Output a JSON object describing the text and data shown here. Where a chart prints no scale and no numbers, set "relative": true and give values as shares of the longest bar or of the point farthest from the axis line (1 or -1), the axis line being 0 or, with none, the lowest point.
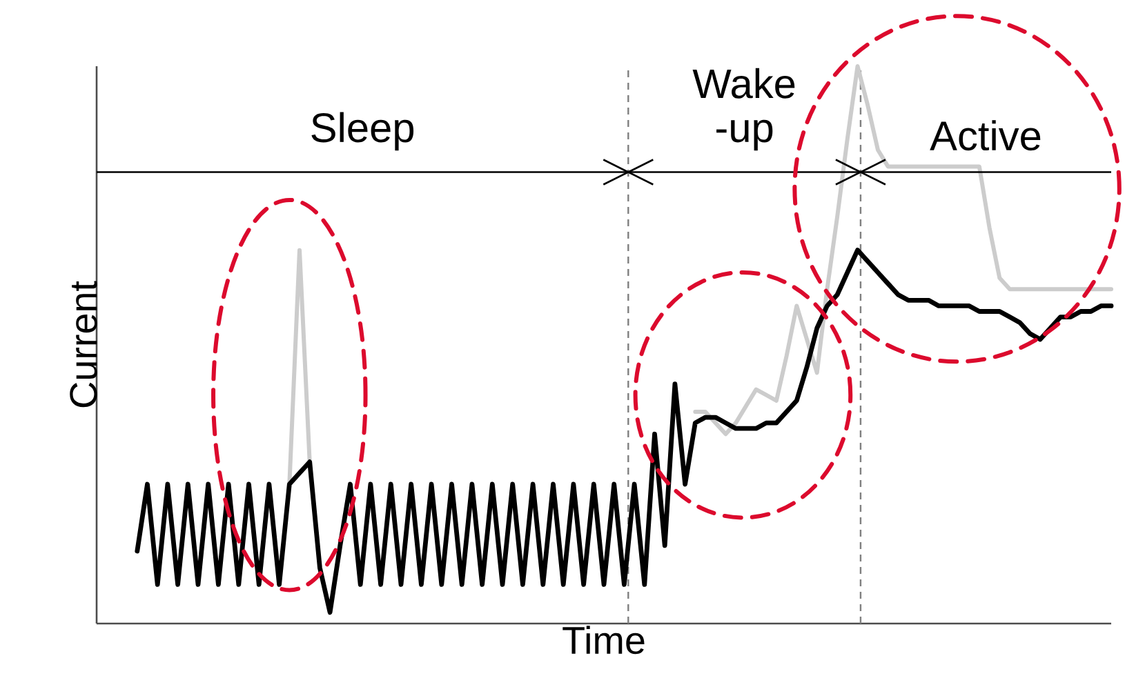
{
  "chart_data": {
    "type": "line",
    "relative": true,
    "xlabel": "Time",
    "ylabel": "Current",
    "categories": [
      null,
      null,
      null,
      null,
      null,
      null,
      null,
      null,
      null,
      null,
      null,
      null,
      null,
      null,
      null,
      null,
      null,
      null,
      null,
      null,
      null,
      null,
      null,
      null,
      null,
      null,
      null,
      null,
      null,
      null,
      null,
      null,
      null,
      null,
      null,
      null,
      null,
      null,
      null,
      null,
      null,
      null,
      null,
      null,
      null,
      null,
      null,
      null,
      null,
      null,
      null,
      null,
      null,
      null,
      null,
      null,
      null,
      null,
      null,
      null,
      null,
      null,
      null,
      null,
      null,
      null,
      null,
      null,
      null,
      null,
      null,
      null,
      null,
      null,
      null,
      null,
      null,
      null,
      null,
      null,
      null,
      null,
      null,
      null,
      null,
      null,
      null,
      null,
      null,
      null,
      null,
      null,
      null,
      null,
      null,
      null,
      null,
      null,
      null,
      null,
      null
    ],
    "series": [
      {
        "color": "#cccccc",
        "values": [
          null,
          null,
          null,
          null,
          null,
          null,
          null,
          null,
          null,
          null,
          null,
          null,
          null,
          null,
          null,
          null,
          null,
          null,
          null,
          0.25,
          0.67,
          0.29,
          null,
          null,
          null,
          null,
          null,
          null,
          null,
          null,
          null,
          null,
          null,
          null,
          null,
          null,
          null,
          null,
          null,
          null,
          null,
          null,
          null,
          null,
          null,
          null,
          null,
          null,
          null,
          null,
          null,
          null,
          null,
          null,
          null,
          null,
          null,
          null,
          null,
          0.38,
          0.38,
          0.36,
          0.34,
          0.36,
          0.39,
          0.42,
          0.41,
          0.4,
          0.48,
          0.57,
          0.51,
          0.45,
          0.6,
          0.73,
          0.87,
          1.0,
          0.93,
          0.85,
          0.82,
          0.82,
          0.82,
          0.82,
          0.82,
          0.82,
          0.82,
          0.82,
          0.82,
          0.82,
          0.71,
          0.62,
          0.6,
          0.6,
          0.6,
          0.6,
          0.6,
          0.6,
          0.6,
          0.6,
          0.6,
          0.6,
          0.6
        ]
      },
      {
        "color": "#000000",
        "values": [
          null,
          null,
          null,
          null,
          0.13,
          0.25,
          0.07,
          0.25,
          0.07,
          0.25,
          0.07,
          0.25,
          0.07,
          0.25,
          0.07,
          0.25,
          0.07,
          0.25,
          0.07,
          0.25,
          0.27,
          0.29,
          0.1,
          0.02,
          0.14,
          0.25,
          0.07,
          0.25,
          0.07,
          0.25,
          0.07,
          0.25,
          0.07,
          0.25,
          0.07,
          0.25,
          0.07,
          0.25,
          0.07,
          0.25,
          0.07,
          0.25,
          0.07,
          0.25,
          0.07,
          0.25,
          0.07,
          0.25,
          0.07,
          0.25,
          0.07,
          0.25,
          0.07,
          0.25,
          0.07,
          0.34,
          0.14,
          0.43,
          0.25,
          0.36,
          0.37,
          0.37,
          0.36,
          0.35,
          0.35,
          0.35,
          0.36,
          0.36,
          0.38,
          0.4,
          0.46,
          0.53,
          0.57,
          0.59,
          0.63,
          0.67,
          0.65,
          0.63,
          0.61,
          0.59,
          0.58,
          0.58,
          0.58,
          0.57,
          0.57,
          0.57,
          0.57,
          0.56,
          0.56,
          0.56,
          0.55,
          0.54,
          0.52,
          0.51,
          0.53,
          0.55,
          0.55,
          0.56,
          0.56,
          0.57,
          0.57
        ]
      }
    ],
    "annotations": [
      "Sleep",
      "Wake -up",
      "Active"
    ]
  }
}
